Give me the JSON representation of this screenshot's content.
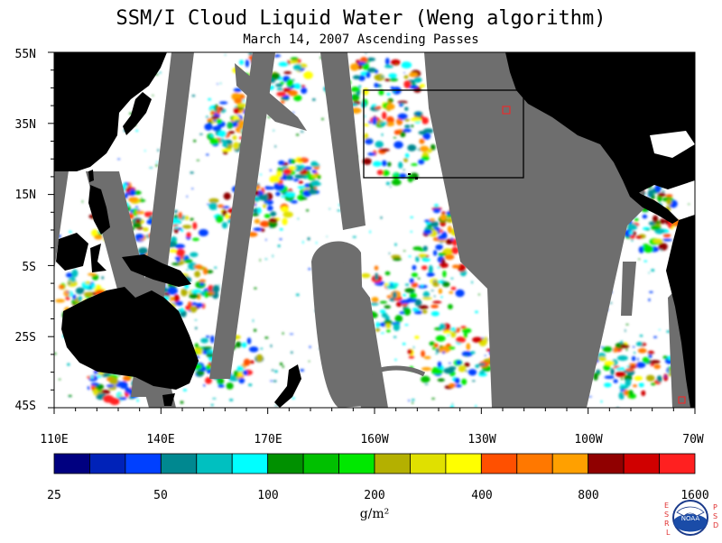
{
  "title": "SSM/I Cloud Liquid Water (Weng algorithm)",
  "subtitle": "March 14, 2007  Ascending Passes",
  "map": {
    "lat_labels": [
      "55N",
      "35N",
      "15N",
      "5S",
      "25S",
      "45S"
    ],
    "lon_labels": [
      "110E",
      "140E",
      "170E",
      "160W",
      "130W",
      "100W",
      "70W"
    ],
    "colors": {
      "background": "#ffffff",
      "land": "#000000",
      "no_data": "#6e6e6e",
      "box": "#000000",
      "marker": "#ff2020"
    }
  },
  "colorbar": {
    "colors": [
      "#000080",
      "#0022b8",
      "#0040ff",
      "#008890",
      "#00c0c0",
      "#00ffff",
      "#009000",
      "#00c000",
      "#00e800",
      "#b4b000",
      "#e0e000",
      "#ffff00",
      "#ff5000",
      "#ff7800",
      "#ffa000",
      "#900000",
      "#d00000",
      "#ff2020"
    ],
    "tick_labels": [
      "25",
      "50",
      "100",
      "200",
      "400",
      "800",
      "1600"
    ],
    "units": "g/m²"
  },
  "logo": {
    "name": "noaa-logo",
    "center_text": "NOAA",
    "left_letters": [
      "E",
      "S",
      "R",
      "L"
    ],
    "right_letters": [
      "P",
      "S",
      "D"
    ]
  }
}
